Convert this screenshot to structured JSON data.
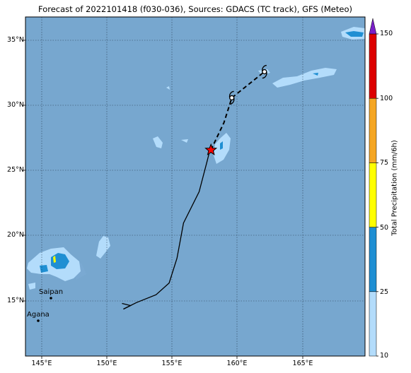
{
  "title": "Forecast of 2022101418 (f030-036), Sources: GDACS (TC track), GFS (Meteo)",
  "colors": {
    "ocean": "#77a7cf",
    "land": "#6f9fc9",
    "precip_light": "#b3dcfb",
    "precip_medium": "#1f8fd3",
    "precip_yellow": "#ffff00",
    "track": "#000000",
    "current_position": "#ff0000"
  },
  "map": {
    "lon_range": [
      144,
      170
    ],
    "lat_range": [
      11,
      37
    ],
    "grid": true,
    "lat_labels": [
      "35°N",
      "30°N",
      "25°N",
      "20°N",
      "15°N"
    ],
    "lon_labels": [
      "145°E",
      "150°E",
      "155°E",
      "160°E",
      "165°E"
    ],
    "places": [
      {
        "name": "Saipan",
        "lon": 145.75,
        "lat": 15.2
      },
      {
        "name": "Agana",
        "lon": 144.8,
        "lat": 13.5
      }
    ]
  },
  "track": {
    "observed": [
      [
        151.5,
        14.6
      ],
      [
        152.5,
        15.1
      ],
      [
        154.0,
        15.7
      ],
      [
        155.0,
        16.6
      ],
      [
        155.6,
        18.5
      ],
      [
        156.1,
        21.2
      ],
      [
        157.3,
        23.6
      ],
      [
        157.9,
        25.9
      ],
      [
        158.1,
        26.7
      ]
    ],
    "current": [
      158.2,
      26.8
    ],
    "forecast": [
      [
        158.2,
        26.8
      ],
      [
        159.2,
        28.9
      ],
      [
        159.8,
        30.8
      ],
      [
        162.3,
        32.8
      ]
    ]
  },
  "colorbar": {
    "label": "Total Precipitation (mm/6h)",
    "ticks": [
      "10",
      "25",
      "50",
      "75",
      "100",
      "150"
    ],
    "colors": [
      "#b3dcfb",
      "#1f8fd3",
      "#ffff00",
      "#f5a623",
      "#dd0000",
      "#7a1fc9"
    ]
  }
}
